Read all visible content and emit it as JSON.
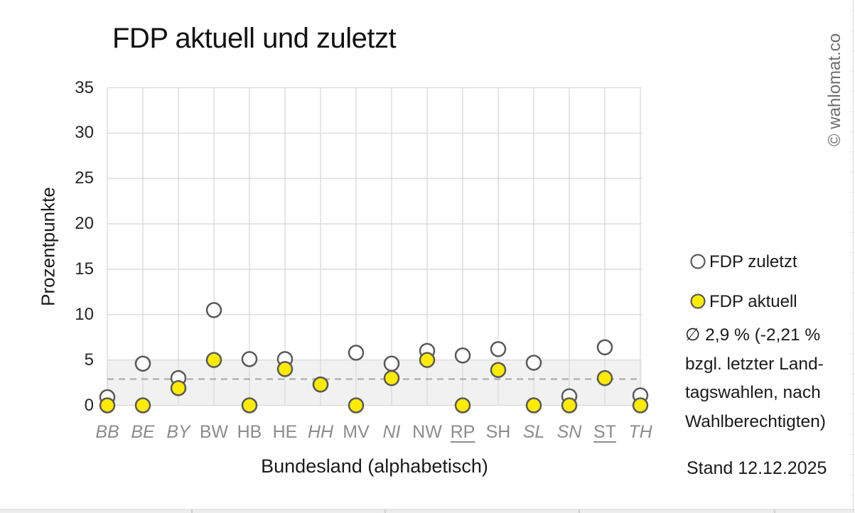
{
  "title": "FDP aktuell und zuletzt",
  "watermark": "© wahlomat.co",
  "chart_data": {
    "type": "scatter",
    "title": "FDP aktuell und zuletzt",
    "xlabel": "Bundesland (alphabetisch)",
    "ylabel": "Prozentpunkte",
    "ylim": [
      0,
      35
    ],
    "yticks": [
      0,
      5,
      10,
      15,
      20,
      25,
      30,
      35
    ],
    "grid": true,
    "legend_position": "right",
    "categories": [
      "BB",
      "BE",
      "BY",
      "BW",
      "HB",
      "HE",
      "HH",
      "MV",
      "NI",
      "NW",
      "RP",
      "SH",
      "SL",
      "SN",
      "ST",
      "TH"
    ],
    "category_label_styles": [
      "italic",
      "italic",
      "italic",
      "normal",
      "normal",
      "normal",
      "italic",
      "normal",
      "italic",
      "normal",
      "underline",
      "normal",
      "italic",
      "italic",
      "underline",
      "italic"
    ],
    "series": [
      {
        "name": "FDP zuletzt",
        "marker": "open-circle",
        "fill": "#ffffff",
        "stroke": "#595959",
        "values": [
          0.9,
          4.6,
          3.0,
          10.5,
          5.1,
          5.1,
          2.3,
          5.8,
          4.6,
          6.0,
          5.5,
          6.2,
          4.7,
          1.0,
          6.4,
          1.1
        ]
      },
      {
        "name": "FDP aktuell",
        "marker": "filled-circle",
        "fill": "#ffeb00",
        "stroke": "#595959",
        "values": [
          0.0,
          0.0,
          1.9,
          5.0,
          0.0,
          4.0,
          2.3,
          0.0,
          3.0,
          5.0,
          0.0,
          3.9,
          0.0,
          0.0,
          3.0,
          0.0
        ]
      }
    ],
    "average_line": {
      "value": 2.9,
      "style": "dashed",
      "color": "#a6a6a6"
    },
    "band": {
      "from": 0,
      "to": 5,
      "color": "#f1f1f1"
    },
    "colors": {
      "grid": "#d9d9d9",
      "axis_text": "#262626",
      "category_text": "#8c8c8c"
    }
  },
  "legend": {
    "zuletzt_label": "FDP zuletzt",
    "aktuell_label": "FDP aktuell"
  },
  "annotation": {
    "lines": [
      "∅ 2,9 % (-2,21 %",
      "bzgl. letzter Land-",
      "tagswahlen, nach",
      "Wahlberechtigten)"
    ]
  },
  "footer": {
    "stand": "Stand 12.12.2025"
  }
}
